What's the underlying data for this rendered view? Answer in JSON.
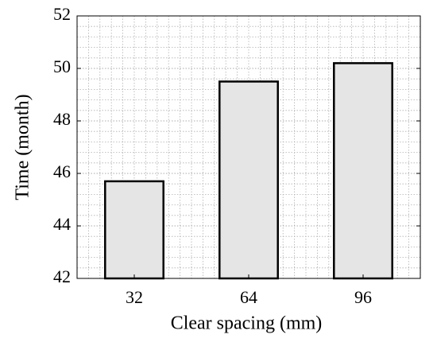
{
  "chart_data": {
    "type": "bar",
    "x_label": "Clear spacing (mm)",
    "y_label": "Time (month)",
    "categories": [
      "32",
      "64",
      "96"
    ],
    "values": [
      45.7,
      49.5,
      50.2
    ],
    "color": "#e5e5e5",
    "edge_color": "#000000",
    "ylim": [
      42,
      52
    ],
    "yticks": [
      42,
      44,
      46,
      48,
      50,
      52
    ],
    "grid": true,
    "minor_grid": true
  }
}
